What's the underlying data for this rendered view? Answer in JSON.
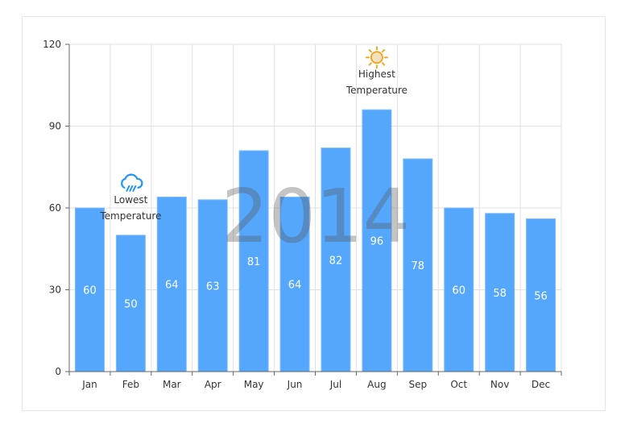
{
  "chart_data": {
    "type": "bar",
    "categories": [
      "Jan",
      "Feb",
      "Mar",
      "Apr",
      "May",
      "Jun",
      "Jul",
      "Aug",
      "Sep",
      "Oct",
      "Nov",
      "Dec"
    ],
    "values": [
      60,
      50,
      64,
      63,
      81,
      64,
      82,
      96,
      78,
      60,
      58,
      56
    ],
    "ylim": [
      0,
      120
    ],
    "yticks": [
      0,
      30,
      60,
      90,
      120
    ],
    "grid": true,
    "bar_color": "#55a7fd",
    "watermark": "2014",
    "annotations": [
      {
        "category": "Feb",
        "icon": "rain-cloud-icon",
        "lines": [
          "Lowest",
          "Temperature"
        ],
        "color": "#2196f3"
      },
      {
        "category": "Aug",
        "icon": "sun-icon",
        "lines": [
          "Highest",
          "Temperature"
        ],
        "color": "#f5a623"
      }
    ]
  }
}
